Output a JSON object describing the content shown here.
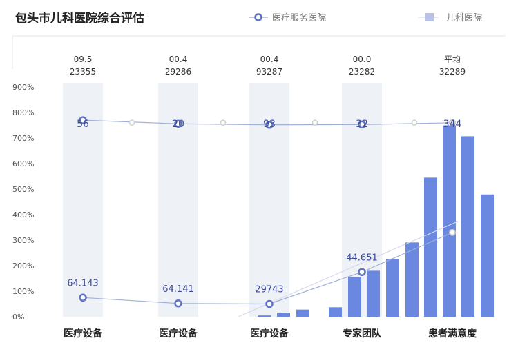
{
  "chart_data": {
    "type": "bar",
    "title": "包头市儿科医院综合评估",
    "legend": [
      {
        "name": "医疗服务医院",
        "marker": "line-circle",
        "color": "#5f74c2"
      },
      {
        "name": "儿科医院",
        "marker": "square",
        "color": "#b9c2e6"
      }
    ],
    "legend_position": "top-right",
    "y_tick_labels": [
      "900%",
      "800%",
      "700%",
      "600%",
      "500%",
      "400%",
      "300%",
      "200%",
      "100%",
      "0%"
    ],
    "ylim": [
      0,
      900
    ],
    "grid": false,
    "categories": [
      "医疗设备",
      "医疗设备",
      "医疗设备",
      "专家团队",
      "患者满意度"
    ],
    "top_labels": [
      [
        "09.5",
        "23355"
      ],
      [
        "00.4",
        "29286"
      ],
      [
        "00.4",
        "93287"
      ],
      [
        "00.0",
        "23282"
      ],
      [
        "平均",
        "32289"
      ]
    ],
    "line_upper": {
      "values": [
        770,
        756,
        752,
        753,
        760
      ],
      "labels": [
        "56",
        "20",
        "93",
        "32",
        "344"
      ]
    },
    "line_lower": {
      "values": [
        75,
        52,
        50,
        175,
        330
      ],
      "labels": [
        "64.143",
        "64.141",
        "29743",
        "44.651",
        ""
      ]
    },
    "bars": [
      0,
      0,
      5,
      16,
      28,
      37,
      155,
      180,
      225,
      291,
      545,
      750,
      707,
      479
    ],
    "colors": {
      "bar": "#6b88e0",
      "band": "#eef1f6",
      "line": "#5f74c2"
    }
  }
}
